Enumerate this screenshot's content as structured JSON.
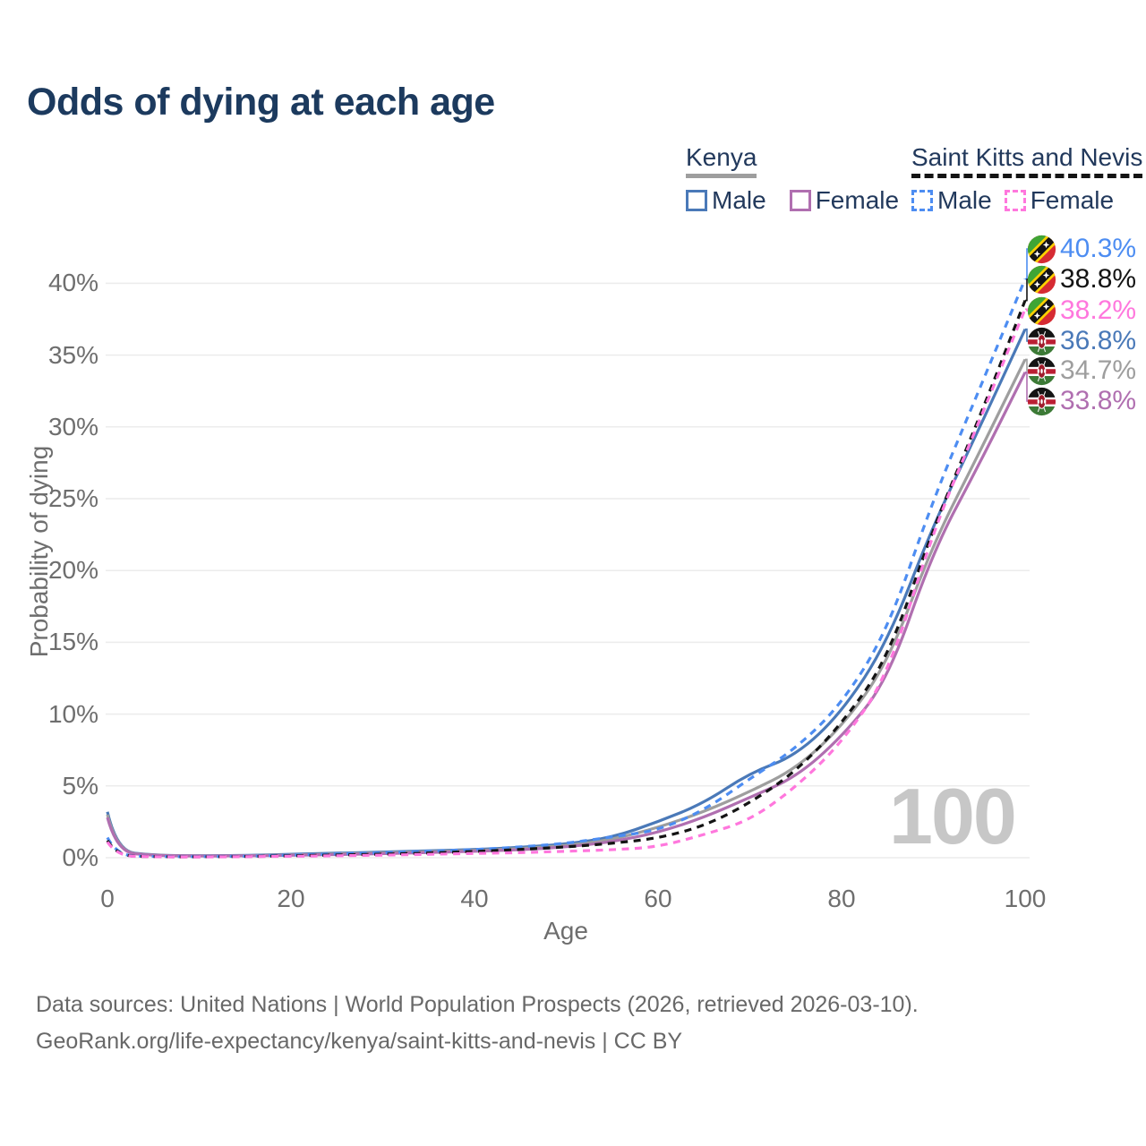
{
  "title": "Odds of dying at each age",
  "legend": {
    "groups": [
      {
        "label": "Kenya",
        "line_style": "solid",
        "underline_color": "#9e9e9e",
        "items": [
          {
            "label": "Male",
            "color": "#4a79b8"
          },
          {
            "label": "Female",
            "color": "#b06fb0"
          }
        ]
      },
      {
        "label": "Saint Kitts and Nevis",
        "line_style": "dashed",
        "underline_color": "#141414",
        "items": [
          {
            "label": "Male",
            "color": "#4d8df2"
          },
          {
            "label": "Female",
            "color": "#ff77dd"
          }
        ]
      }
    ]
  },
  "chart_data": {
    "type": "line",
    "title": "Odds of dying at each age",
    "xlabel": "Age",
    "ylabel": "Probability of dying",
    "xlim": [
      0,
      100
    ],
    "ylim": [
      0,
      43
    ],
    "grid": true,
    "x_ticks": [
      0,
      20,
      40,
      60,
      80,
      100
    ],
    "y_ticks": [
      "0%",
      "5%",
      "10%",
      "15%",
      "20%",
      "25%",
      "30%",
      "35%",
      "40%"
    ],
    "watermark": "100",
    "ages": [
      0,
      1,
      5,
      10,
      15,
      20,
      25,
      30,
      35,
      40,
      45,
      50,
      55,
      60,
      65,
      70,
      75,
      80,
      85,
      90,
      95,
      100
    ],
    "series": [
      {
        "id": "kenya-male",
        "name": "Kenya Male",
        "color": "#4a79b8",
        "dash": false,
        "values": [
          3.2,
          0.45,
          0.17,
          0.13,
          0.16,
          0.24,
          0.32,
          0.4,
          0.48,
          0.57,
          0.72,
          0.95,
          1.4,
          2.5,
          3.8,
          5.9,
          7.1,
          10.1,
          15.0,
          23.2,
          29.9,
          36.8
        ]
      },
      {
        "id": "kenya-both",
        "name": "Kenya (both sexes)",
        "color": "#9e9e9e",
        "dash": false,
        "values": [
          3.0,
          0.42,
          0.16,
          0.12,
          0.14,
          0.2,
          0.27,
          0.34,
          0.42,
          0.5,
          0.63,
          0.85,
          1.25,
          2.1,
          3.2,
          4.6,
          6.2,
          9.1,
          13.5,
          21.9,
          28.2,
          34.7
        ]
      },
      {
        "id": "kenya-female",
        "name": "Kenya Female",
        "color": "#b06fb0",
        "dash": false,
        "values": [
          2.8,
          0.4,
          0.15,
          0.11,
          0.13,
          0.17,
          0.22,
          0.28,
          0.36,
          0.44,
          0.55,
          0.75,
          1.1,
          1.75,
          2.8,
          4.2,
          5.6,
          8.4,
          12.3,
          21.4,
          27.4,
          33.8
        ]
      },
      {
        "id": "skn-male",
        "name": "Saint Kitts and Nevis Male",
        "color": "#4d8df2",
        "dash": true,
        "values": [
          1.4,
          0.15,
          0.08,
          0.07,
          0.1,
          0.18,
          0.26,
          0.34,
          0.44,
          0.56,
          0.75,
          1.0,
          1.45,
          1.9,
          3.3,
          5.5,
          7.6,
          10.7,
          15.8,
          25.0,
          32.6,
          40.3
        ]
      },
      {
        "id": "skn-both",
        "name": "Saint Kitts and Nevis (both sexes)",
        "color": "#141414",
        "dash": true,
        "values": [
          1.2,
          0.13,
          0.07,
          0.06,
          0.08,
          0.14,
          0.19,
          0.25,
          0.33,
          0.43,
          0.58,
          0.75,
          1.0,
          1.35,
          2.2,
          3.8,
          6.0,
          9.3,
          13.8,
          23.0,
          30.6,
          38.8
        ]
      },
      {
        "id": "skn-female",
        "name": "Saint Kitts and Nevis Female",
        "color": "#ff77dd",
        "dash": true,
        "values": [
          1.1,
          0.12,
          0.06,
          0.05,
          0.07,
          0.1,
          0.14,
          0.18,
          0.24,
          0.3,
          0.35,
          0.45,
          0.55,
          0.75,
          1.6,
          2.6,
          4.9,
          8.0,
          12.6,
          22.8,
          30.4,
          38.2
        ]
      }
    ],
    "end_labels": [
      {
        "label": "40.3%",
        "pct": 40.3,
        "color": "#4d8df2",
        "flag": "saint-kitts-and-nevis"
      },
      {
        "label": "38.8%",
        "pct": 38.8,
        "color": "#141414",
        "flag": "saint-kitts-and-nevis"
      },
      {
        "label": "38.2%",
        "pct": 38.2,
        "color": "#ff77dd",
        "flag": "saint-kitts-and-nevis"
      },
      {
        "label": "36.8%",
        "pct": 36.8,
        "color": "#4a79b8",
        "flag": "kenya"
      },
      {
        "label": "34.7%",
        "pct": 34.7,
        "color": "#9e9e9e",
        "flag": "kenya"
      },
      {
        "label": "33.8%",
        "pct": 33.8,
        "color": "#b06fb0",
        "flag": "kenya"
      }
    ]
  },
  "footer": {
    "line1": "Data sources: United Nations | World Population Prospects (2026, retrieved 2026-03-10).",
    "line2": "GeoRank.org/life-expectancy/kenya/saint-kitts-and-nevis | CC BY"
  }
}
